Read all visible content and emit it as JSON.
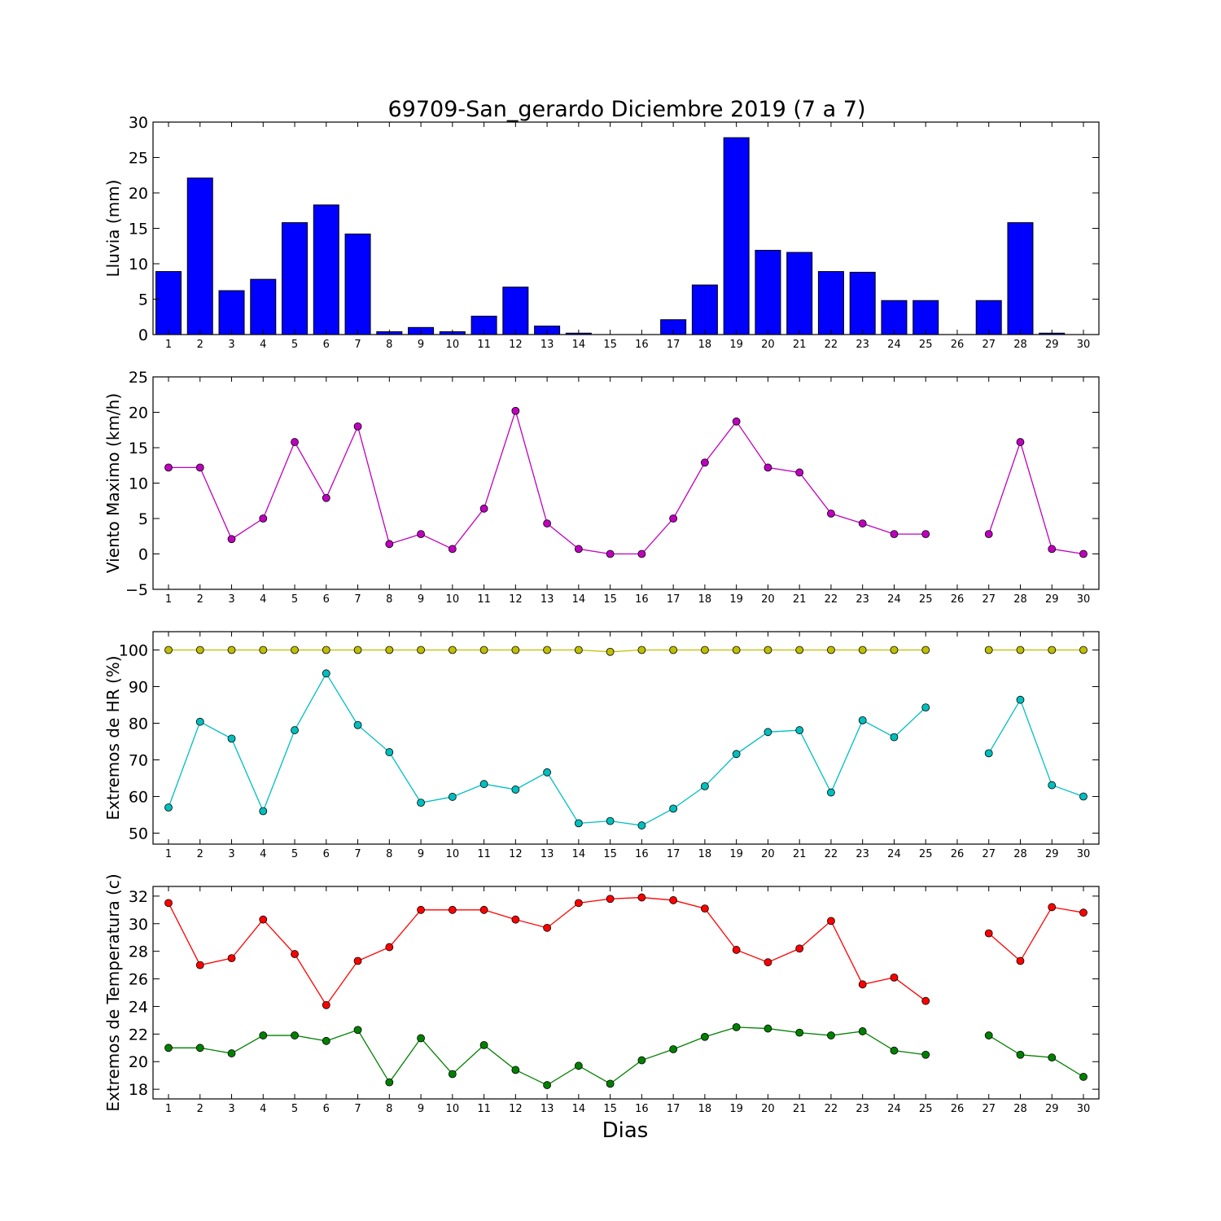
{
  "chart_data": [
    {
      "type": "bar",
      "title": "69709-San_gerardo Diciembre 2019  (7 a 7)",
      "ylabel": "Lluvia (mm)",
      "xlabel": "",
      "x": [
        1,
        2,
        3,
        4,
        5,
        6,
        7,
        8,
        9,
        10,
        11,
        12,
        13,
        14,
        15,
        16,
        17,
        18,
        19,
        20,
        21,
        22,
        23,
        24,
        25,
        26,
        27,
        28,
        29,
        30
      ],
      "ylim": [
        0,
        30
      ],
      "yticks": [
        0,
        5,
        10,
        15,
        20,
        25,
        30
      ],
      "grid": false,
      "series": [
        {
          "color": "#0000ff",
          "values": [
            8.9,
            22.1,
            6.2,
            7.8,
            15.8,
            18.3,
            14.2,
            0.4,
            1.0,
            0.4,
            2.6,
            6.7,
            1.2,
            0.2,
            0.0,
            0.0,
            2.1,
            7.0,
            27.8,
            11.9,
            11.6,
            8.9,
            8.8,
            4.8,
            4.8,
            null,
            4.8,
            15.8,
            0.2,
            0.0
          ]
        }
      ]
    },
    {
      "type": "line",
      "ylabel": "Viento Maximo (km/h)",
      "x": [
        1,
        2,
        3,
        4,
        5,
        6,
        7,
        8,
        9,
        10,
        11,
        12,
        13,
        14,
        15,
        16,
        17,
        18,
        19,
        20,
        21,
        22,
        23,
        24,
        25,
        26,
        27,
        28,
        29,
        30
      ],
      "ylim": [
        -5,
        25
      ],
      "yticks": [
        -5,
        0,
        5,
        10,
        15,
        20,
        25
      ],
      "grid": false,
      "series": [
        {
          "color": "#bf00bf",
          "values": [
            12.2,
            12.2,
            2.1,
            5.0,
            15.8,
            7.9,
            18.0,
            1.4,
            2.8,
            0.7,
            6.4,
            20.2,
            4.3,
            0.7,
            0.0,
            0.0,
            5.0,
            12.9,
            18.7,
            12.2,
            11.5,
            5.7,
            4.3,
            2.8,
            2.8,
            null,
            2.8,
            15.8,
            0.7,
            0.0
          ]
        }
      ]
    },
    {
      "type": "line",
      "ylabel": "Extremos de HR (%)",
      "x": [
        1,
        2,
        3,
        4,
        5,
        6,
        7,
        8,
        9,
        10,
        11,
        12,
        13,
        14,
        15,
        16,
        17,
        18,
        19,
        20,
        21,
        22,
        23,
        24,
        25,
        26,
        27,
        28,
        29,
        30
      ],
      "ylim": [
        47,
        105
      ],
      "yticks": [
        50,
        60,
        70,
        80,
        90,
        100
      ],
      "grid": false,
      "series": [
        {
          "color": "#bfbf00",
          "values": [
            100,
            100,
            100,
            100,
            100,
            100,
            100,
            100,
            100,
            100,
            100,
            100,
            100,
            100,
            99.5,
            100,
            100,
            100,
            100,
            100,
            100,
            100,
            100,
            100,
            100,
            null,
            100,
            100,
            100,
            100
          ]
        },
        {
          "color": "#00bfbf",
          "values": [
            57.0,
            80.4,
            75.8,
            56.0,
            78.1,
            93.6,
            79.5,
            72.1,
            58.3,
            59.9,
            63.4,
            61.9,
            66.6,
            52.7,
            53.3,
            52.1,
            56.7,
            62.8,
            71.6,
            77.6,
            78.1,
            61.1,
            80.8,
            76.2,
            84.3,
            null,
            71.8,
            86.4,
            63.1,
            60.0
          ]
        }
      ]
    },
    {
      "type": "line",
      "ylabel": "Extremos de Temperatura (c)",
      "xlabel": "Dias",
      "x": [
        1,
        2,
        3,
        4,
        5,
        6,
        7,
        8,
        9,
        10,
        11,
        12,
        13,
        14,
        15,
        16,
        17,
        18,
        19,
        20,
        21,
        22,
        23,
        24,
        25,
        26,
        27,
        28,
        29,
        30
      ],
      "ylim": [
        17.3,
        32.7
      ],
      "yticks": [
        18,
        20,
        22,
        24,
        26,
        28,
        30,
        32
      ],
      "grid": false,
      "series": [
        {
          "color": "#ff0000",
          "values": [
            31.5,
            27.0,
            27.5,
            30.3,
            27.8,
            24.1,
            27.3,
            28.3,
            31.0,
            31.0,
            31.0,
            30.3,
            29.7,
            31.5,
            31.8,
            31.9,
            31.7,
            31.1,
            28.1,
            27.2,
            28.2,
            30.2,
            25.6,
            26.1,
            24.4,
            null,
            29.3,
            27.3,
            31.2,
            30.8
          ]
        },
        {
          "color": "#008000",
          "values": [
            21.0,
            21.0,
            20.6,
            21.9,
            21.9,
            21.5,
            22.3,
            18.5,
            21.7,
            19.1,
            21.2,
            19.4,
            18.3,
            19.7,
            18.4,
            20.1,
            20.9,
            21.8,
            22.5,
            22.4,
            22.1,
            21.9,
            22.2,
            20.8,
            20.5,
            null,
            21.9,
            20.5,
            20.3,
            18.9
          ]
        }
      ]
    }
  ]
}
